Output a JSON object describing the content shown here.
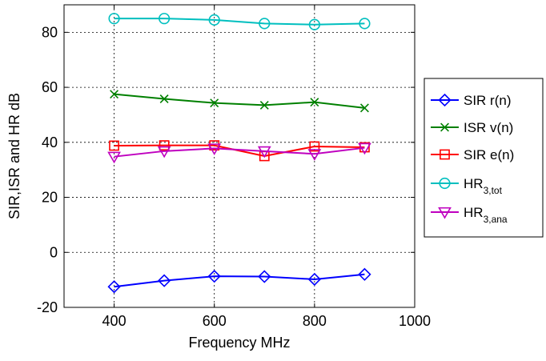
{
  "chart_data": {
    "type": "line",
    "title": "",
    "xlabel": "Frequency MHz",
    "ylabel": "SIR,ISR and HR dB",
    "xlim": [
      300,
      1000
    ],
    "ylim": [
      -20,
      90
    ],
    "xticks": [
      400,
      600,
      800,
      1000
    ],
    "yticks": [
      -20,
      0,
      20,
      40,
      60,
      80
    ],
    "x_tick_labels": [
      "400",
      "600",
      "800",
      "1000"
    ],
    "y_tick_labels": [
      "-20",
      "0",
      "20",
      "40",
      "60",
      "80"
    ],
    "grid": true,
    "grid_style": "dotted",
    "legend_position": "outside-right",
    "x": [
      400,
      500,
      600,
      700,
      800,
      900
    ],
    "series": [
      {
        "name": "SIR r(n)",
        "label_main": "SIR r(n)",
        "label_sub": "",
        "color": "#0000ff",
        "marker": "diamond",
        "values": [
          -12.5,
          -10.3,
          -8.7,
          -8.8,
          -9.8,
          -8.0
        ]
      },
      {
        "name": "ISR v(n)",
        "label_main": "ISR v(n)",
        "label_sub": "",
        "color": "#008000",
        "marker": "x",
        "values": [
          57.5,
          55.8,
          54.3,
          53.5,
          54.6,
          52.5
        ]
      },
      {
        "name": "SIR e(n)",
        "label_main": "SIR e(n)",
        "label_sub": "",
        "color": "#ff0000",
        "marker": "square",
        "values": [
          38.8,
          38.9,
          38.9,
          35.0,
          38.5,
          38.2
        ]
      },
      {
        "name": "HR3,tot",
        "label_main": "HR",
        "label_sub": "3,tot",
        "color": "#00bfbf",
        "marker": "circle",
        "values": [
          85.0,
          85.0,
          84.5,
          83.2,
          82.8,
          83.2
        ]
      },
      {
        "name": "HR3,ana",
        "label_main": "HR",
        "label_sub": "3,ana",
        "color": "#bf00bf",
        "marker": "triangle-down",
        "values": [
          34.8,
          36.8,
          37.8,
          36.8,
          35.8,
          38.0
        ]
      }
    ]
  }
}
